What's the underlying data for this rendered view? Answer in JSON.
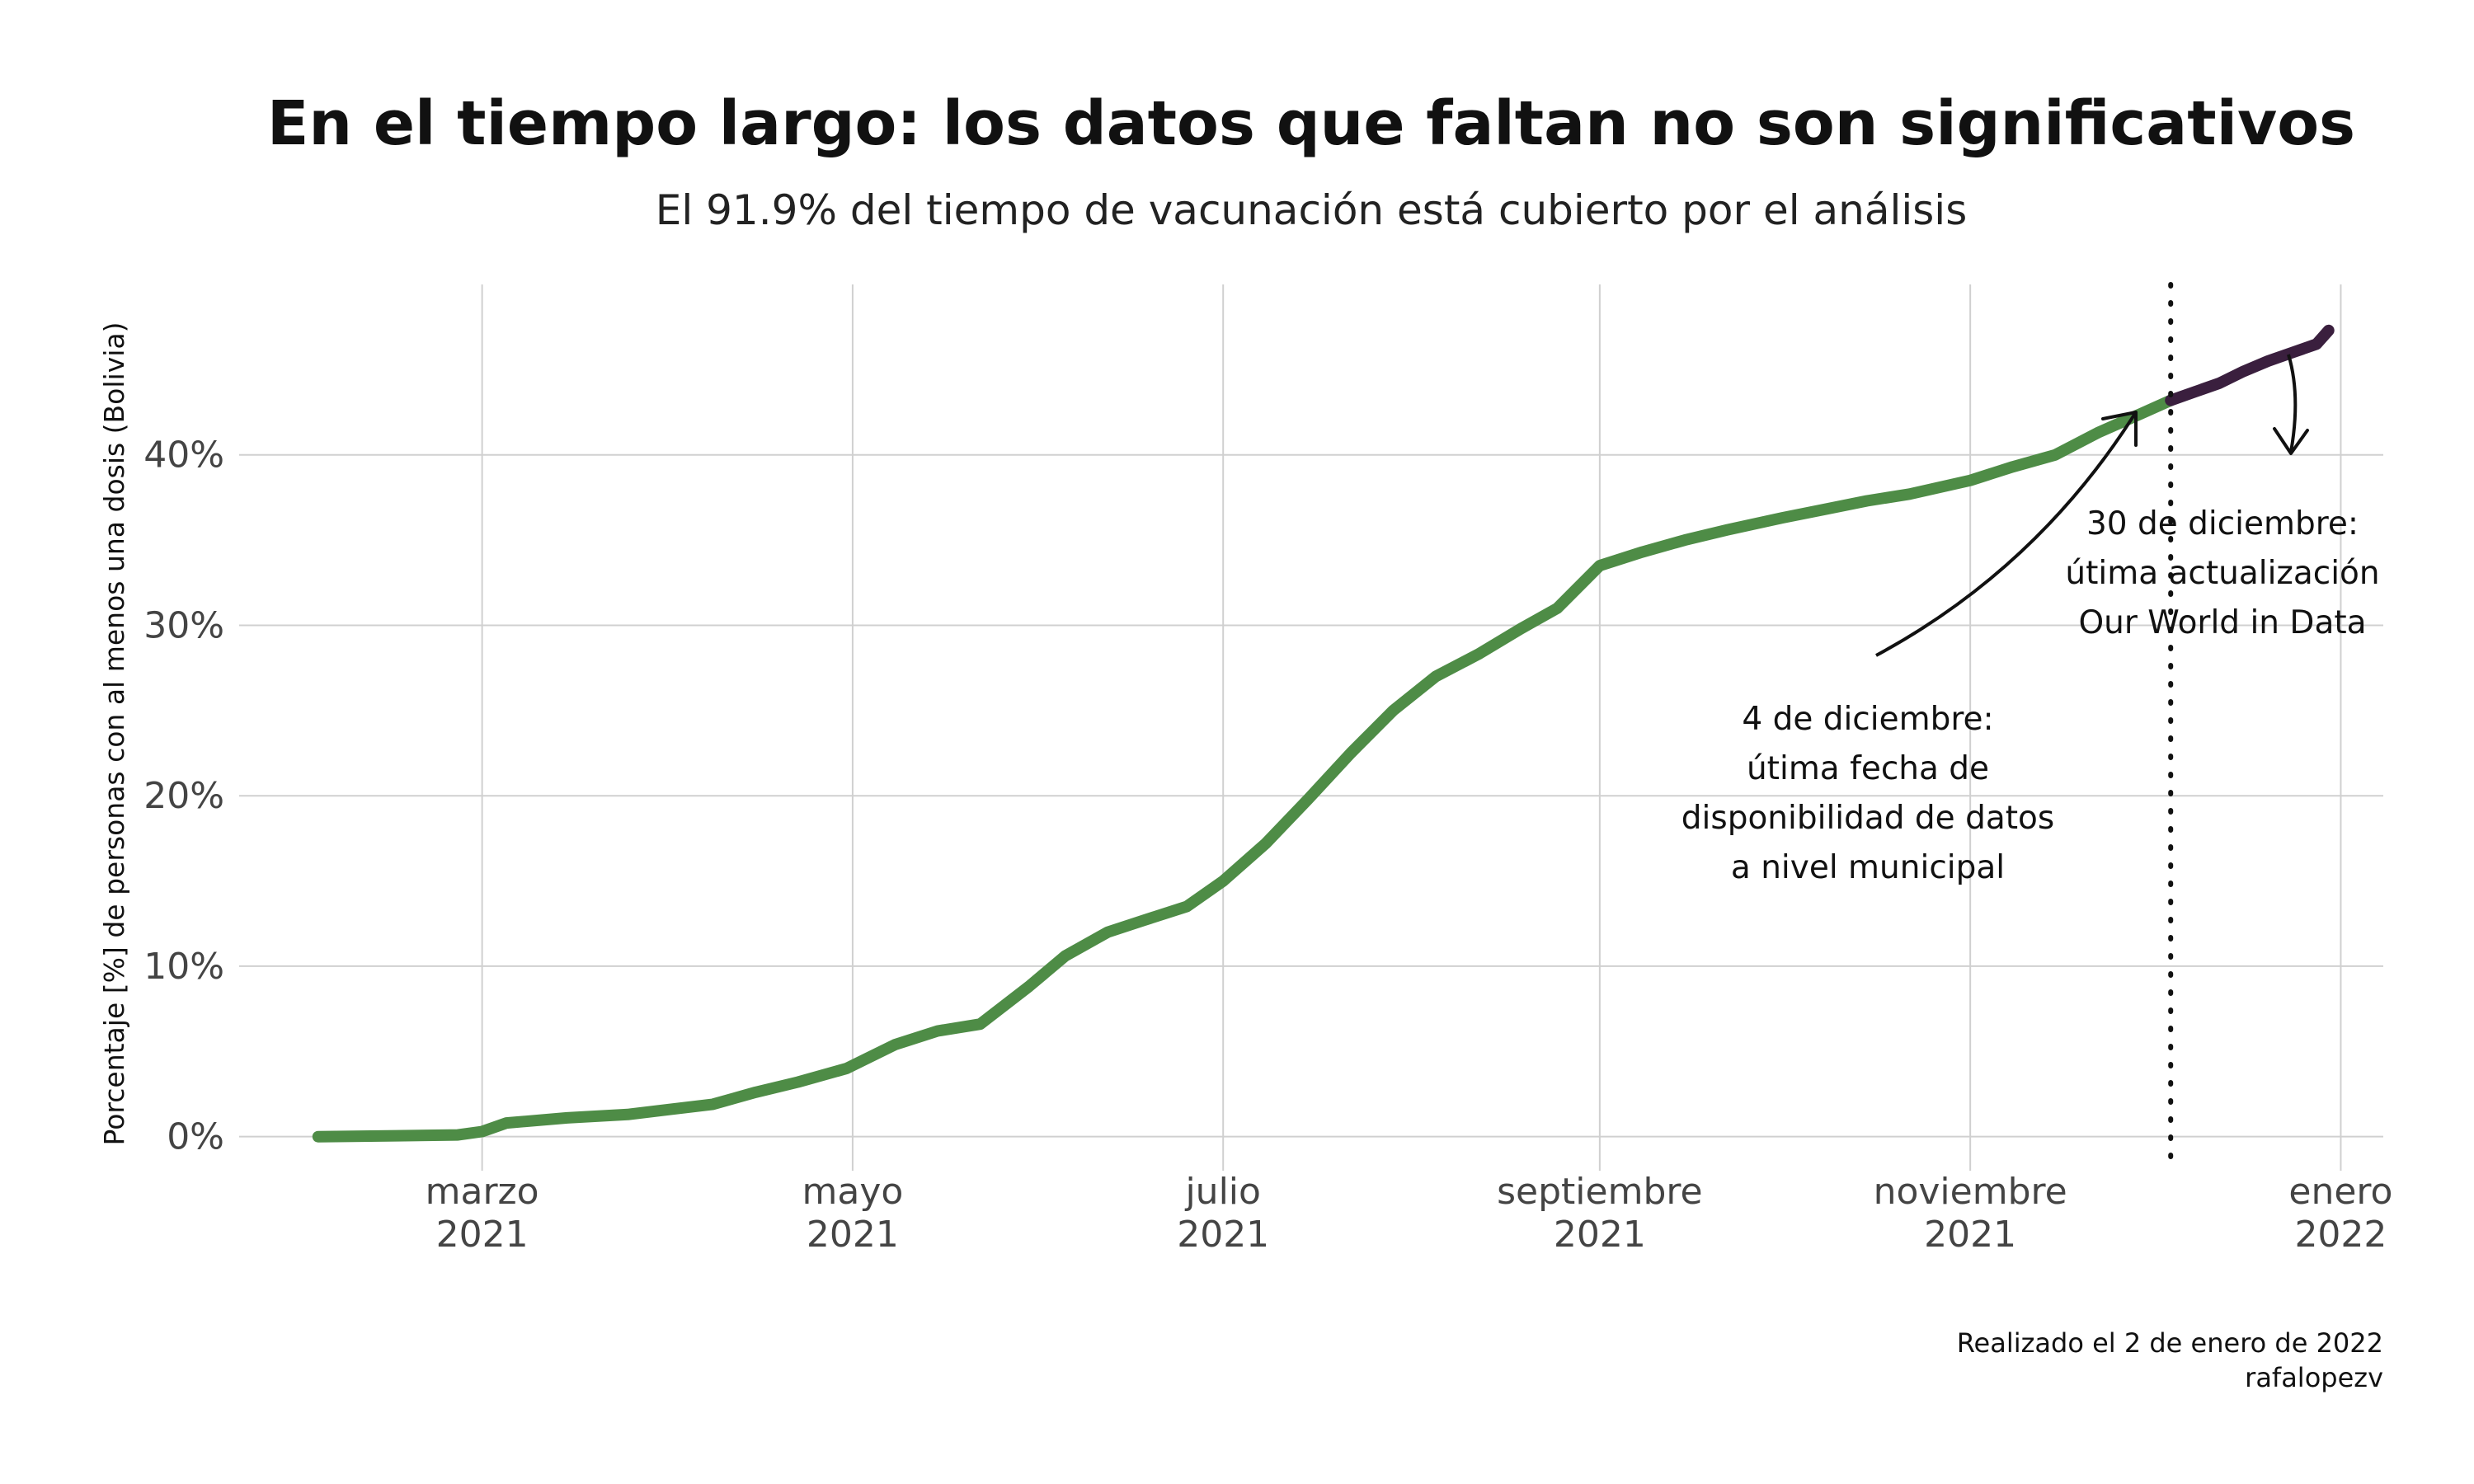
{
  "chart_data": {
    "type": "line",
    "title": "En el tiempo largo: los datos que faltan no son significativos",
    "subtitle": "El 91.9% del tiempo de vacunación está cubierto por el análisis",
    "ylabel": "Porcentaje [%] de personas con al menos una dosis (Bolivia)",
    "xlabel": "",
    "ylim": [
      -2,
      50
    ],
    "xlim": [
      "2021-01-20",
      "2022-01-08"
    ],
    "grid": true,
    "y_ticks": [
      {
        "value": 0,
        "label": "0%"
      },
      {
        "value": 10,
        "label": "10%"
      },
      {
        "value": 20,
        "label": "20%"
      },
      {
        "value": 30,
        "label": "30%"
      },
      {
        "value": 40,
        "label": "40%"
      }
    ],
    "x_ticks": [
      {
        "date": "2021-03-01",
        "label1": "marzo",
        "label2": "2021"
      },
      {
        "date": "2021-05-01",
        "label1": "mayo",
        "label2": "2021"
      },
      {
        "date": "2021-07-01",
        "label1": "julio",
        "label2": "2021"
      },
      {
        "date": "2021-09-01",
        "label1": "septiembre",
        "label2": "2021"
      },
      {
        "date": "2021-11-01",
        "label1": "noviembre",
        "label2": "2021"
      },
      {
        "date": "2022-01-01",
        "label1": "enero",
        "label2": "2022"
      }
    ],
    "series": [
      {
        "color": "#4e8c46",
        "x": [
          "2021-02-02",
          "2021-02-15",
          "2021-02-25",
          "2021-03-01",
          "2021-03-05",
          "2021-03-15",
          "2021-03-25",
          "2021-04-01",
          "2021-04-08",
          "2021-04-15",
          "2021-04-22",
          "2021-04-30",
          "2021-05-08",
          "2021-05-15",
          "2021-05-22",
          "2021-05-30",
          "2021-06-05",
          "2021-06-12",
          "2021-06-18",
          "2021-06-25",
          "2021-07-01",
          "2021-07-08",
          "2021-07-15",
          "2021-07-22",
          "2021-07-29",
          "2021-08-05",
          "2021-08-12",
          "2021-08-19",
          "2021-08-25",
          "2021-09-01",
          "2021-09-08",
          "2021-09-15",
          "2021-09-22",
          "2021-10-01",
          "2021-10-08",
          "2021-10-15",
          "2021-10-22",
          "2021-11-01",
          "2021-11-08",
          "2021-11-15",
          "2021-11-22",
          "2021-11-29",
          "2021-12-04"
        ],
        "values": [
          0.0,
          0.05,
          0.1,
          0.3,
          0.8,
          1.1,
          1.3,
          1.6,
          1.9,
          2.6,
          3.2,
          4.0,
          5.4,
          6.2,
          6.6,
          8.8,
          10.6,
          12.0,
          12.7,
          13.5,
          15.0,
          17.2,
          19.8,
          22.5,
          25.0,
          27.0,
          28.3,
          29.8,
          31.0,
          33.5,
          34.3,
          35.0,
          35.6,
          36.3,
          36.8,
          37.3,
          37.7,
          38.5,
          39.3,
          40.0,
          41.3,
          42.4,
          43.2
        ]
      },
      {
        "color": "#3a1f3e",
        "x": [
          "2021-12-04",
          "2021-12-08",
          "2021-12-12",
          "2021-12-16",
          "2021-12-20",
          "2021-12-24",
          "2021-12-28",
          "2021-12-30"
        ],
        "values": [
          43.2,
          43.7,
          44.2,
          44.9,
          45.5,
          46.0,
          46.5,
          47.3
        ]
      }
    ],
    "annotations": [
      {
        "lines": [
          "4 de diciembre:",
          "útima fecha de",
          "disponibilidad de datos",
          "a nivel municipal"
        ]
      },
      {
        "lines": [
          "30 de diciembre:",
          "útima actualización",
          "Our World in Data"
        ]
      }
    ],
    "vline_date": "2021-12-04",
    "caption": [
      "Realizado el 2 de enero de 2022",
      "rafalopezv"
    ]
  }
}
